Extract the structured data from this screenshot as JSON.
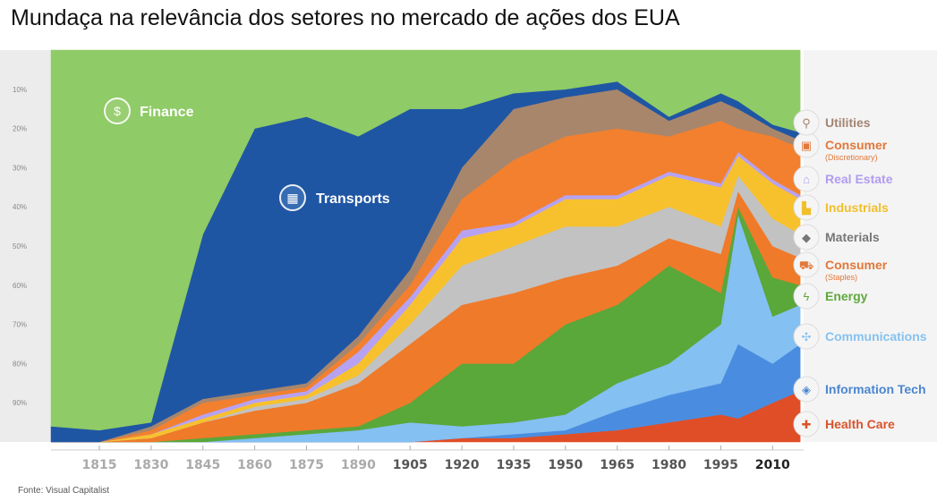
{
  "title": "Mundaça na relevância dos setores no mercado de ações dos EUA",
  "source": "Fonte: Visual Capitalist",
  "chart_data": {
    "type": "area",
    "stacked": true,
    "normalized": true,
    "title": "Mundaça na relevância dos setores no mercado de ações dos EUA",
    "xlabel": "",
    "ylabel": "",
    "xlim": [
      1801,
      2019
    ],
    "ylim": [
      0,
      100
    ],
    "x": [
      1800,
      1815,
      1830,
      1845,
      1860,
      1875,
      1890,
      1905,
      1920,
      1935,
      1950,
      1965,
      1980,
      1995,
      2000,
      2010,
      2018
    ],
    "x_ticks": [
      "1815",
      "1830",
      "1845",
      "1860",
      "1875",
      "1890",
      "1905",
      "1920",
      "1935",
      "1950",
      "1965",
      "1980",
      "1995",
      "2010"
    ],
    "y_ticks": [
      "10%",
      "20%",
      "30%",
      "40%",
      "50%",
      "60%",
      "70%",
      "80%",
      "90%"
    ],
    "series": [
      {
        "name": "Health Care",
        "sub": "",
        "color": "#e04e28",
        "values": [
          0,
          0,
          0,
          0,
          0,
          0,
          0,
          0,
          1,
          1,
          2,
          3,
          5,
          7,
          6,
          10,
          13
        ]
      },
      {
        "name": "Information Tech",
        "sub": "",
        "color": "#4a8de0",
        "values": [
          0,
          0,
          0,
          0,
          0,
          0,
          0,
          0,
          0,
          1,
          1,
          5,
          7,
          8,
          19,
          10,
          12
        ]
      },
      {
        "name": "Communications",
        "sub": "",
        "color": "#84c0f2",
        "values": [
          0,
          0,
          0,
          0,
          1,
          2,
          3,
          5,
          3,
          3,
          4,
          7,
          8,
          15,
          33,
          12,
          10
        ]
      },
      {
        "name": "Energy",
        "sub": "",
        "color": "#5aa73a",
        "values": [
          0,
          0,
          0,
          1,
          1,
          1,
          1,
          5,
          16,
          15,
          23,
          20,
          25,
          8,
          2,
          10,
          5
        ]
      },
      {
        "name": "Consumer",
        "sub": "(Staples)",
        "color": "#ef7a2a",
        "values": [
          0,
          0,
          1,
          4,
          6,
          7,
          11,
          15,
          15,
          18,
          12,
          10,
          7,
          10,
          4,
          8,
          7
        ]
      },
      {
        "name": "Materials",
        "sub": "",
        "color": "#c2c2c2",
        "values": [
          0,
          0,
          0,
          0,
          1,
          1,
          2,
          5,
          10,
          12,
          13,
          10,
          8,
          7,
          4,
          7,
          6
        ]
      },
      {
        "name": "Industrials",
        "sub": "",
        "color": "#f7c12e",
        "values": [
          0,
          0,
          1,
          1,
          1,
          1,
          3,
          5,
          7,
          5,
          7,
          7,
          8,
          10,
          5,
          9,
          9
        ]
      },
      {
        "name": "Real Estate",
        "sub": "",
        "color": "#b7a2f2",
        "values": [
          0,
          0,
          0,
          1,
          1,
          1,
          3,
          2,
          2,
          1,
          1,
          1,
          1,
          1,
          1,
          1,
          1
        ]
      },
      {
        "name": "Consumer",
        "sub": "(Discretionary)",
        "color": "#f2802e",
        "values": [
          0,
          0,
          1,
          3,
          1,
          1,
          2,
          3,
          8,
          16,
          15,
          17,
          9,
          16,
          6,
          11,
          12
        ]
      },
      {
        "name": "Utilities",
        "sub": "",
        "color": "#a8866c",
        "values": [
          0,
          0,
          1,
          1,
          1,
          1,
          2,
          4,
          8,
          13,
          10,
          10,
          4,
          5,
          5,
          2,
          2
        ]
      },
      {
        "name": "Transports",
        "sub": "",
        "color": "#1f56a4",
        "values": [
          4,
          3,
          1,
          42,
          67,
          68,
          51,
          41,
          15,
          4,
          2,
          2,
          1,
          2,
          2,
          1,
          2
        ]
      },
      {
        "name": "Finance",
        "sub": "",
        "color": "#8fcb66",
        "values": [
          96,
          97,
          95,
          47,
          20,
          17,
          22,
          15,
          15,
          11,
          10,
          8,
          17,
          11,
          13,
          19,
          21
        ]
      }
    ],
    "legend_placement": "right",
    "legend_label_colors": [
      "#d9532c",
      "#4a86cf",
      "#86c2f0",
      "#5fa83c",
      "#e2783a",
      "#777777",
      "#f0bf2a",
      "#b19cf0",
      "#e2783a",
      "#a38470"
    ]
  }
}
